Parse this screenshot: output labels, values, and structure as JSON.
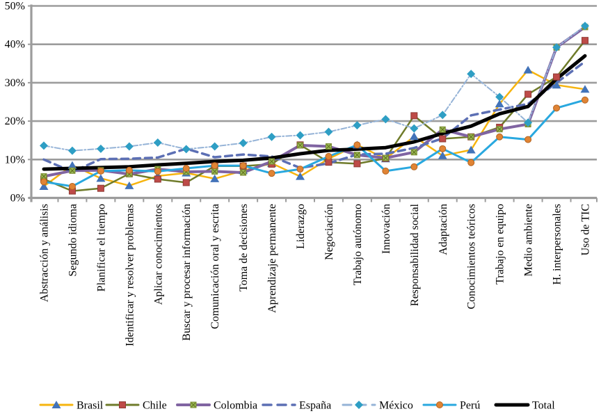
{
  "chart_data": {
    "type": "line",
    "title": "",
    "xlabel": "",
    "ylabel": "",
    "ylim": [
      0,
      50
    ],
    "ytick_labels": [
      "0%",
      "10%",
      "20%",
      "30%",
      "40%",
      "50%"
    ],
    "grid": true,
    "legend_position": "bottom",
    "categories": [
      "Abstracción y análisis",
      "Segundo idioma",
      "Planificar el tiempo",
      "Identificar y resolver problemas",
      "Aplicar conocimientos",
      "Buscar y procesar información",
      "Comunicación oral y escrita",
      "Toma de decisiones",
      "Aprendizaje permanente",
      "Liderazgo",
      "Negociación",
      "Trabajo autónomo",
      "Innovación",
      "Responsabilidad social",
      "Adaptación",
      "Conocimientos teóricos",
      "Trabajo en equipo",
      "Medio ambiente",
      "H. interpersonales",
      "Uso de TIC"
    ],
    "series": [
      {
        "name": "Brasil",
        "line_color": "#F6B40E",
        "marker": "triangle",
        "marker_color": "#4273B9",
        "dash": "solid",
        "line_width": 2.5,
        "values": [
          3.0,
          8.5,
          5.1,
          3.2,
          5.7,
          6.5,
          5.0,
          7.1,
          9.0,
          5.6,
          10.2,
          13.8,
          10.2,
          16.0,
          11.0,
          12.5,
          24.5,
          33.3,
          29.4,
          28.3
        ]
      },
      {
        "name": "Chile",
        "line_color": "#6F7B2A",
        "marker": "square",
        "marker_color": "#BE4B48",
        "dash": "solid",
        "line_width": 2.5,
        "values": [
          4.9,
          1.8,
          2.5,
          6.3,
          4.9,
          4.0,
          8.3,
          8.3,
          8.8,
          13.8,
          9.3,
          8.9,
          10.3,
          21.4,
          15.4,
          15.9,
          18.4,
          27.0,
          31.5,
          41.0
        ]
      },
      {
        "name": "Colombia",
        "line_color": "#8064A2",
        "marker": "x-square",
        "marker_color": "#9BBB59",
        "dash": "solid",
        "line_width": 4,
        "values": [
          5.6,
          7.1,
          7.2,
          6.2,
          7.5,
          6.8,
          6.9,
          6.6,
          9.5,
          13.7,
          13.4,
          11.2,
          10.4,
          11.9,
          17.8,
          15.9,
          17.9,
          19.2,
          39.2,
          44.5
        ]
      },
      {
        "name": "España",
        "line_color": "#5C6FB4",
        "marker": "none",
        "dash": "dashed",
        "line_width": 3.5,
        "values": [
          10.0,
          6.8,
          10.1,
          10.2,
          10.5,
          12.8,
          10.6,
          11.3,
          10.8,
          7.8,
          9.0,
          11.3,
          11.5,
          13.0,
          15.5,
          21.5,
          23.0,
          24.5,
          30.0,
          35.5
        ]
      },
      {
        "name": "México",
        "line_color": "#95B3D7",
        "marker": "diamond",
        "marker_color": "#2E9EC4",
        "dash": "dash-dot",
        "line_width": 2,
        "values": [
          13.6,
          12.3,
          12.8,
          13.4,
          14.4,
          12.7,
          13.4,
          14.3,
          15.9,
          16.3,
          17.2,
          18.9,
          20.5,
          18.1,
          21.6,
          32.3,
          26.3,
          19.6,
          39.2,
          44.8
        ]
      },
      {
        "name": "Perú",
        "line_color": "#29A8DF",
        "marker": "circle",
        "marker_color": "#E08435",
        "dash": "solid",
        "line_width": 3,
        "values": [
          4.2,
          3.0,
          7.0,
          7.2,
          6.9,
          7.7,
          8.4,
          8.4,
          6.4,
          7.5,
          10.8,
          13.8,
          7.0,
          8.1,
          12.8,
          9.2,
          15.9,
          15.2,
          23.4,
          25.5
        ]
      },
      {
        "name": "Total",
        "line_color": "#000000",
        "marker": "none",
        "dash": "solid",
        "line_width": 5,
        "values": [
          7.5,
          7.7,
          7.9,
          8.1,
          8.6,
          9.0,
          9.5,
          9.8,
          10.4,
          11.5,
          12.4,
          12.7,
          13.1,
          14.6,
          16.8,
          18.7,
          21.9,
          23.8,
          31.0,
          37.0
        ]
      }
    ],
    "axis_color": "#9C9C9C"
  }
}
